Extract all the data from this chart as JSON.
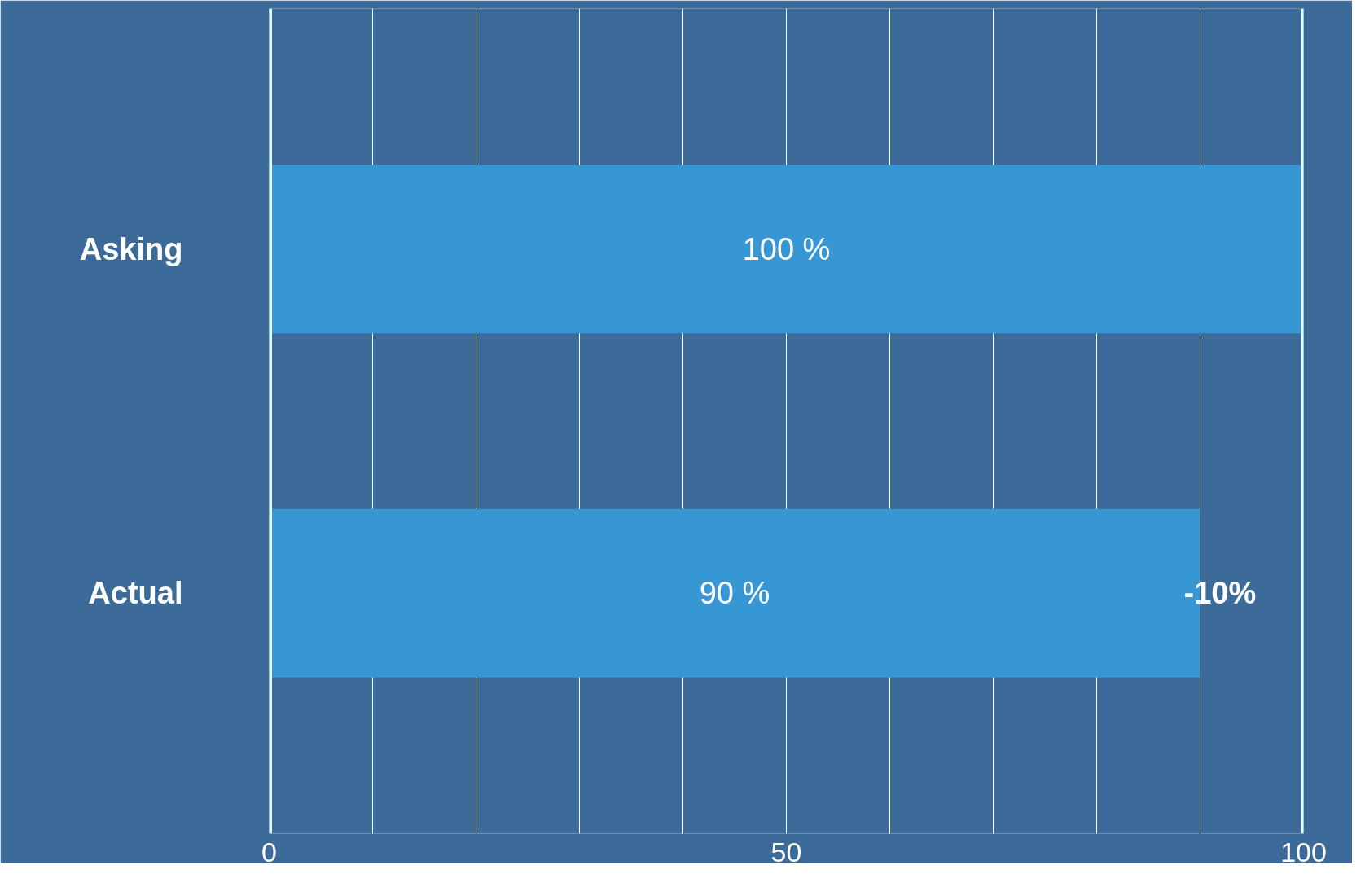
{
  "chart_data": {
    "type": "bar",
    "orientation": "horizontal",
    "categories": [
      "Asking",
      "Actual"
    ],
    "values": [
      100,
      90
    ],
    "color": "#3797d5",
    "value_labels": [
      "100 %",
      "90 %"
    ],
    "xlim": [
      0,
      100
    ],
    "xticks": [
      0,
      {
        "value": 10,
        "label": null
      },
      {
        "value": 20,
        "label": null
      },
      {
        "value": 30,
        "label": null
      },
      {
        "value": 40,
        "label": null
      },
      50,
      {
        "value": 60,
        "label": null
      },
      {
        "value": 70,
        "label": null
      },
      {
        "value": 80,
        "label": null
      },
      {
        "value": 90,
        "label": null
      },
      100
    ],
    "grid": "x",
    "ref_lines": [
      {
        "axis": "x",
        "value": 0,
        "label": null,
        "color": "#e0ffff"
      },
      {
        "axis": "x",
        "value": 100,
        "label": null,
        "color": "#e0ffff"
      }
    ],
    "annotations": [
      {
        "text": "-10%",
        "x": 90,
        "y": "Actual"
      }
    ]
  }
}
